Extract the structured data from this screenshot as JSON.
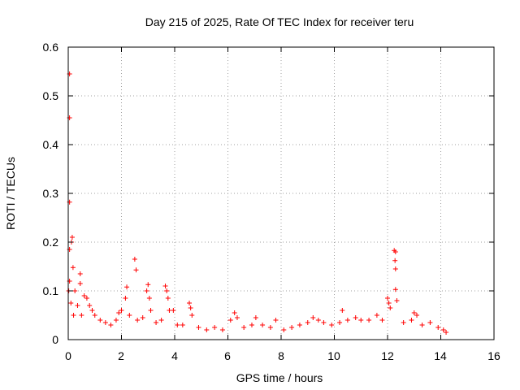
{
  "chart_data": {
    "type": "scatter",
    "title": "Day 215 of 2025, Rate Of TEC Index for receiver teru",
    "xlabel": "GPS time / hours",
    "ylabel": "ROTI / TECUs",
    "xlim": [
      0,
      16
    ],
    "ylim": [
      0,
      0.6
    ],
    "x_ticks": [
      "0",
      "2",
      "4",
      "6",
      "8",
      "10",
      "12",
      "14",
      "16"
    ],
    "y_ticks": [
      "0",
      "0.1",
      "0.2",
      "0.3",
      "0.4",
      "0.5",
      "0.6"
    ],
    "grid": true,
    "marker": "+",
    "series": [
      {
        "color": "#ff0000",
        "points": [
          [
            0.05,
            0.545
          ],
          [
            0.05,
            0.455
          ],
          [
            0.05,
            0.282
          ],
          [
            0.15,
            0.21
          ],
          [
            0.12,
            0.2
          ],
          [
            0.05,
            0.185
          ],
          [
            0.18,
            0.148
          ],
          [
            0.45,
            0.135
          ],
          [
            0.45,
            0.115
          ],
          [
            0.05,
            0.12
          ],
          [
            0.02,
            0.1
          ],
          [
            0.25,
            0.1
          ],
          [
            0.6,
            0.09
          ],
          [
            0.7,
            0.085
          ],
          [
            0.1,
            0.075
          ],
          [
            0.35,
            0.07
          ],
          [
            0.8,
            0.07
          ],
          [
            0.9,
            0.06
          ],
          [
            0.2,
            0.05
          ],
          [
            0.5,
            0.05
          ],
          [
            1.0,
            0.05
          ],
          [
            1.2,
            0.04
          ],
          [
            1.4,
            0.035
          ],
          [
            1.6,
            0.03
          ],
          [
            1.8,
            0.04
          ],
          [
            1.9,
            0.055
          ],
          [
            2.0,
            0.06
          ],
          [
            2.15,
            0.085
          ],
          [
            2.2,
            0.108
          ],
          [
            2.3,
            0.05
          ],
          [
            2.5,
            0.165
          ],
          [
            2.55,
            0.143
          ],
          [
            2.6,
            0.04
          ],
          [
            2.8,
            0.045
          ],
          [
            2.95,
            0.1
          ],
          [
            3.0,
            0.113
          ],
          [
            3.05,
            0.085
          ],
          [
            3.1,
            0.06
          ],
          [
            3.3,
            0.035
          ],
          [
            3.5,
            0.04
          ],
          [
            3.65,
            0.11
          ],
          [
            3.7,
            0.1
          ],
          [
            3.75,
            0.085
          ],
          [
            3.8,
            0.06
          ],
          [
            3.95,
            0.06
          ],
          [
            4.1,
            0.03
          ],
          [
            4.3,
            0.03
          ],
          [
            4.55,
            0.075
          ],
          [
            4.6,
            0.065
          ],
          [
            4.65,
            0.05
          ],
          [
            4.9,
            0.025
          ],
          [
            5.2,
            0.02
          ],
          [
            5.5,
            0.025
          ],
          [
            5.8,
            0.02
          ],
          [
            6.1,
            0.04
          ],
          [
            6.25,
            0.055
          ],
          [
            6.35,
            0.045
          ],
          [
            6.6,
            0.025
          ],
          [
            6.9,
            0.03
          ],
          [
            7.05,
            0.045
          ],
          [
            7.3,
            0.03
          ],
          [
            7.6,
            0.025
          ],
          [
            7.8,
            0.04
          ],
          [
            8.1,
            0.02
          ],
          [
            8.4,
            0.025
          ],
          [
            8.7,
            0.03
          ],
          [
            9.0,
            0.035
          ],
          [
            9.2,
            0.045
          ],
          [
            9.4,
            0.04
          ],
          [
            9.6,
            0.035
          ],
          [
            9.9,
            0.03
          ],
          [
            10.2,
            0.035
          ],
          [
            10.3,
            0.06
          ],
          [
            10.5,
            0.04
          ],
          [
            10.8,
            0.045
          ],
          [
            11.0,
            0.04
          ],
          [
            11.3,
            0.04
          ],
          [
            11.6,
            0.05
          ],
          [
            11.8,
            0.04
          ],
          [
            12.0,
            0.085
          ],
          [
            12.05,
            0.075
          ],
          [
            12.1,
            0.065
          ],
          [
            12.25,
            0.183
          ],
          [
            12.3,
            0.18
          ],
          [
            12.28,
            0.162
          ],
          [
            12.3,
            0.145
          ],
          [
            12.3,
            0.103
          ],
          [
            12.35,
            0.08
          ],
          [
            12.6,
            0.035
          ],
          [
            12.9,
            0.04
          ],
          [
            13.0,
            0.055
          ],
          [
            13.1,
            0.05
          ],
          [
            13.3,
            0.03
          ],
          [
            13.6,
            0.035
          ],
          [
            13.9,
            0.025
          ],
          [
            14.1,
            0.02
          ],
          [
            14.2,
            0.015
          ]
        ]
      }
    ]
  }
}
